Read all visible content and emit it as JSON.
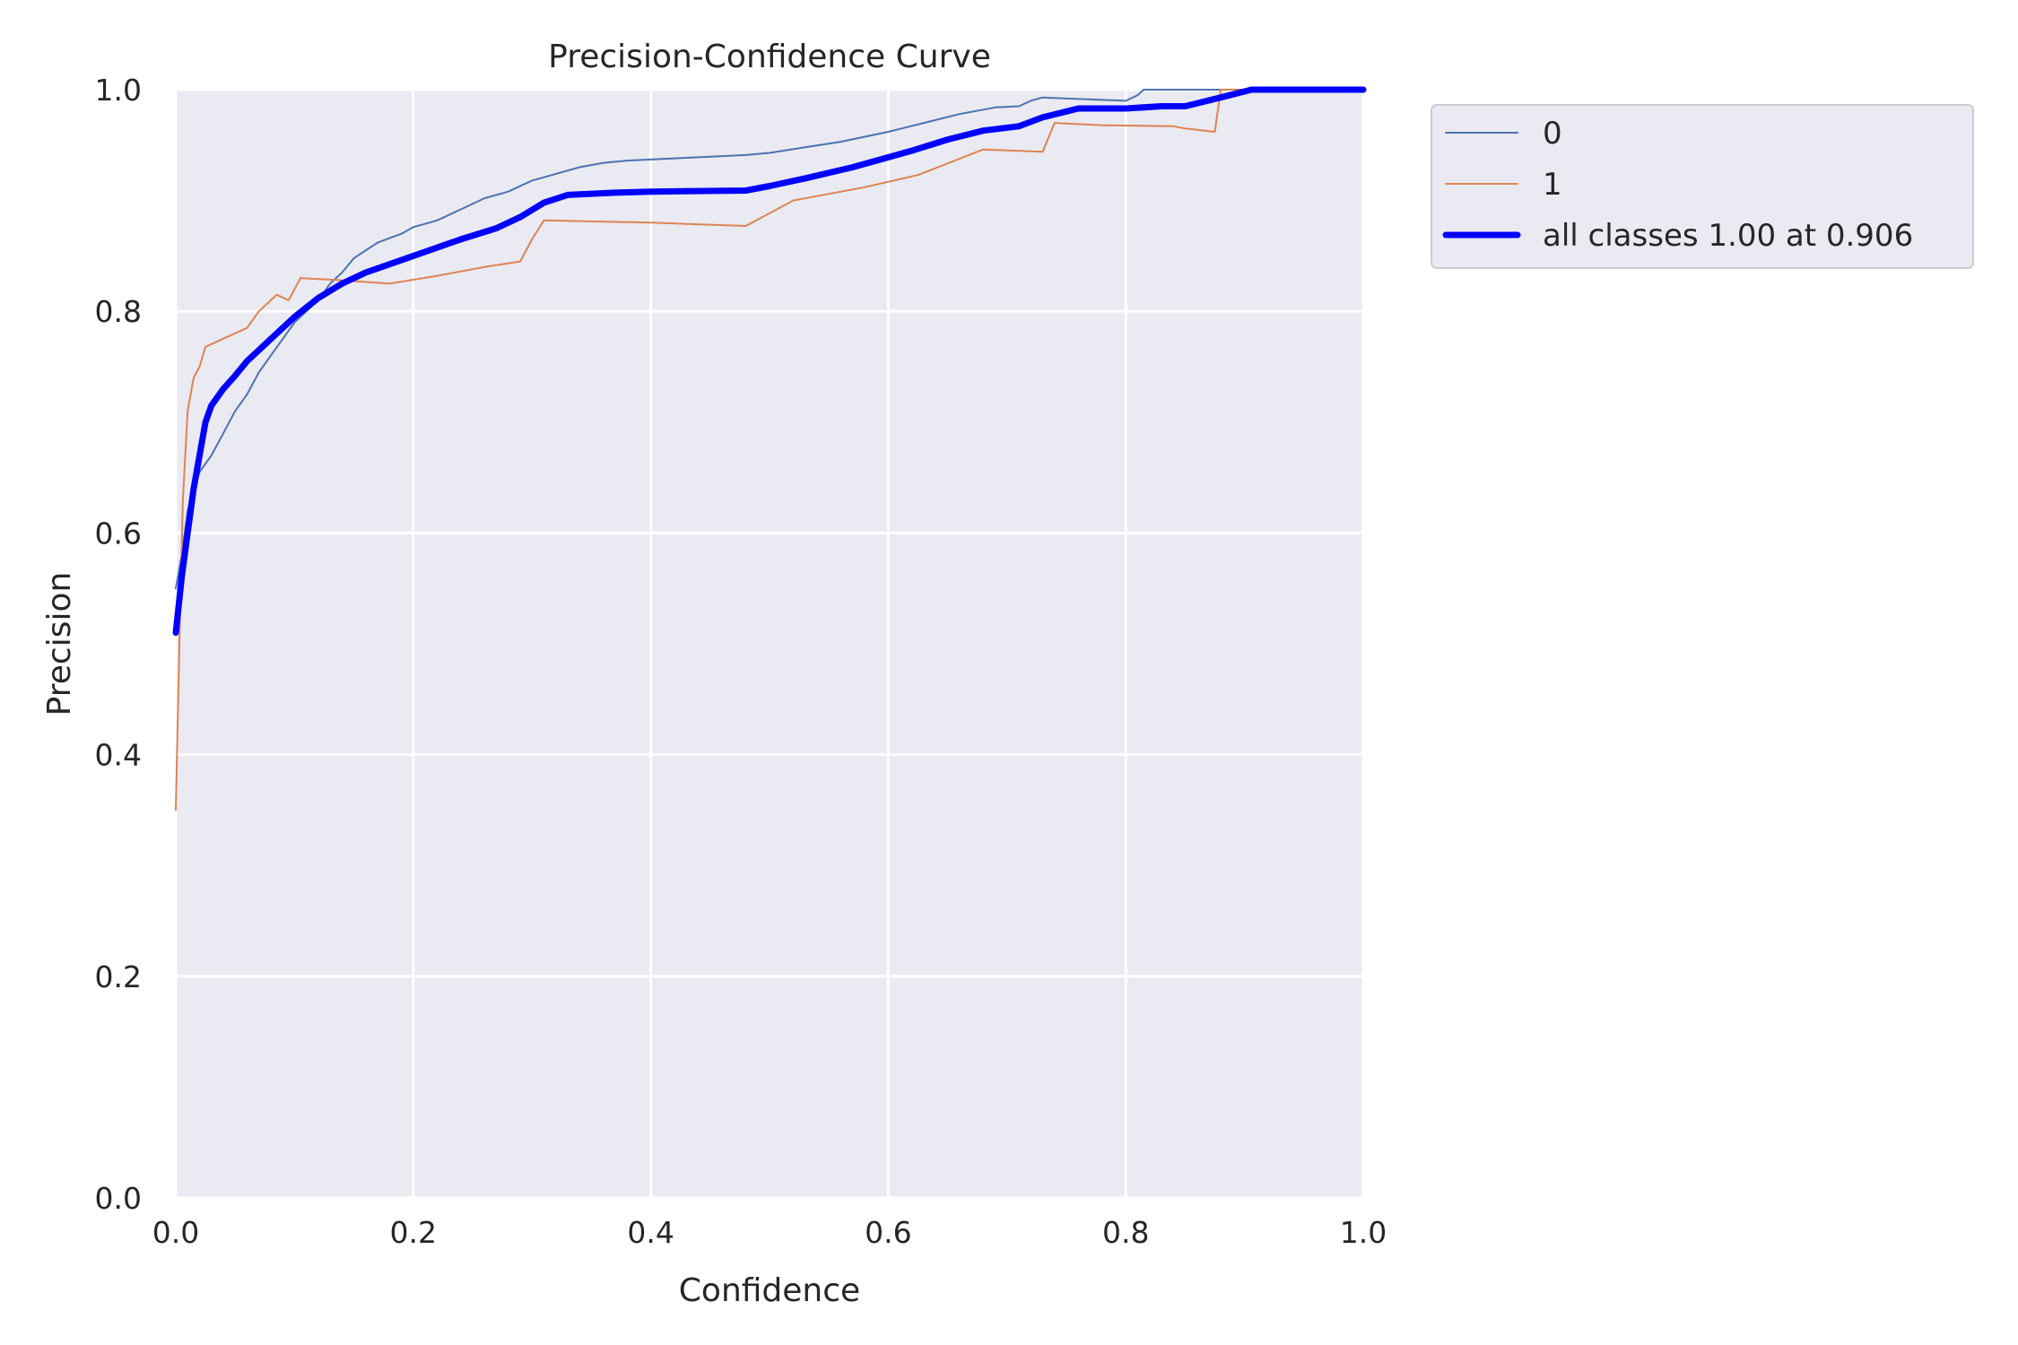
{
  "chart_data": {
    "type": "line",
    "title": "Precision-Confidence Curve",
    "xlabel": "Confidence",
    "ylabel": "Precision",
    "xlim": [
      0,
      1
    ],
    "ylim": [
      0,
      1
    ],
    "xticks": [
      "0.0",
      "0.2",
      "0.4",
      "0.6",
      "0.8",
      "1.0"
    ],
    "yticks": [
      "0.0",
      "0.2",
      "0.4",
      "0.6",
      "0.8",
      "1.0"
    ],
    "grid": true,
    "legend_position": "outside-top-right",
    "series": [
      {
        "name": "0",
        "color": "#4c72b0",
        "width": 2,
        "points": [
          [
            0.0,
            0.55
          ],
          [
            0.005,
            0.58
          ],
          [
            0.01,
            0.62
          ],
          [
            0.015,
            0.64
          ],
          [
            0.02,
            0.655
          ],
          [
            0.03,
            0.67
          ],
          [
            0.04,
            0.69
          ],
          [
            0.05,
            0.71
          ],
          [
            0.06,
            0.725
          ],
          [
            0.07,
            0.745
          ],
          [
            0.08,
            0.76
          ],
          [
            0.09,
            0.775
          ],
          [
            0.1,
            0.79
          ],
          [
            0.11,
            0.8
          ],
          [
            0.12,
            0.81
          ],
          [
            0.13,
            0.825
          ],
          [
            0.14,
            0.835
          ],
          [
            0.15,
            0.848
          ],
          [
            0.16,
            0.855
          ],
          [
            0.17,
            0.862
          ],
          [
            0.18,
            0.866
          ],
          [
            0.19,
            0.87
          ],
          [
            0.2,
            0.876
          ],
          [
            0.22,
            0.882
          ],
          [
            0.24,
            0.892
          ],
          [
            0.26,
            0.902
          ],
          [
            0.28,
            0.908
          ],
          [
            0.3,
            0.918
          ],
          [
            0.32,
            0.924
          ],
          [
            0.34,
            0.93
          ],
          [
            0.36,
            0.934
          ],
          [
            0.38,
            0.936
          ],
          [
            0.4,
            0.937
          ],
          [
            0.44,
            0.939
          ],
          [
            0.48,
            0.941
          ],
          [
            0.5,
            0.943
          ],
          [
            0.53,
            0.948
          ],
          [
            0.56,
            0.953
          ],
          [
            0.6,
            0.962
          ],
          [
            0.63,
            0.97
          ],
          [
            0.66,
            0.978
          ],
          [
            0.69,
            0.984
          ],
          [
            0.71,
            0.985
          ],
          [
            0.72,
            0.99
          ],
          [
            0.73,
            0.993
          ],
          [
            0.75,
            0.992
          ],
          [
            0.8,
            0.99
          ],
          [
            0.81,
            0.995
          ],
          [
            0.815,
            1.0
          ],
          [
            1.0,
            1.0
          ]
        ]
      },
      {
        "name": "1",
        "color": "#dd8452",
        "width": 2,
        "points": [
          [
            0.0,
            0.35
          ],
          [
            0.003,
            0.5
          ],
          [
            0.006,
            0.63
          ],
          [
            0.01,
            0.71
          ],
          [
            0.015,
            0.74
          ],
          [
            0.02,
            0.75
          ],
          [
            0.025,
            0.768
          ],
          [
            0.06,
            0.785
          ],
          [
            0.07,
            0.8
          ],
          [
            0.085,
            0.815
          ],
          [
            0.095,
            0.81
          ],
          [
            0.105,
            0.83
          ],
          [
            0.14,
            0.828
          ],
          [
            0.18,
            0.825
          ],
          [
            0.22,
            0.832
          ],
          [
            0.26,
            0.84
          ],
          [
            0.29,
            0.845
          ],
          [
            0.3,
            0.865
          ],
          [
            0.31,
            0.882
          ],
          [
            0.4,
            0.88
          ],
          [
            0.48,
            0.877
          ],
          [
            0.52,
            0.9
          ],
          [
            0.58,
            0.912
          ],
          [
            0.625,
            0.923
          ],
          [
            0.68,
            0.946
          ],
          [
            0.73,
            0.944
          ],
          [
            0.74,
            0.97
          ],
          [
            0.78,
            0.968
          ],
          [
            0.84,
            0.967
          ],
          [
            0.85,
            0.965
          ],
          [
            0.875,
            0.962
          ],
          [
            0.88,
            1.0
          ],
          [
            1.0,
            1.0
          ]
        ]
      },
      {
        "name": "all classes 1.00 at 0.906",
        "color": "#0000ff",
        "width": 7,
        "points": [
          [
            0.0,
            0.51
          ],
          [
            0.005,
            0.56
          ],
          [
            0.01,
            0.6
          ],
          [
            0.015,
            0.64
          ],
          [
            0.02,
            0.67
          ],
          [
            0.025,
            0.7
          ],
          [
            0.03,
            0.715
          ],
          [
            0.04,
            0.73
          ],
          [
            0.05,
            0.742
          ],
          [
            0.06,
            0.755
          ],
          [
            0.08,
            0.775
          ],
          [
            0.1,
            0.795
          ],
          [
            0.12,
            0.812
          ],
          [
            0.14,
            0.825
          ],
          [
            0.16,
            0.835
          ],
          [
            0.2,
            0.85
          ],
          [
            0.24,
            0.865
          ],
          [
            0.27,
            0.875
          ],
          [
            0.29,
            0.885
          ],
          [
            0.31,
            0.898
          ],
          [
            0.33,
            0.905
          ],
          [
            0.37,
            0.907
          ],
          [
            0.4,
            0.908
          ],
          [
            0.48,
            0.909
          ],
          [
            0.5,
            0.913
          ],
          [
            0.53,
            0.92
          ],
          [
            0.57,
            0.93
          ],
          [
            0.62,
            0.945
          ],
          [
            0.65,
            0.955
          ],
          [
            0.68,
            0.963
          ],
          [
            0.71,
            0.967
          ],
          [
            0.73,
            0.975
          ],
          [
            0.76,
            0.983
          ],
          [
            0.8,
            0.983
          ],
          [
            0.83,
            0.985
          ],
          [
            0.85,
            0.985
          ],
          [
            0.88,
            0.993
          ],
          [
            0.906,
            1.0
          ],
          [
            1.0,
            1.0
          ]
        ]
      }
    ]
  }
}
